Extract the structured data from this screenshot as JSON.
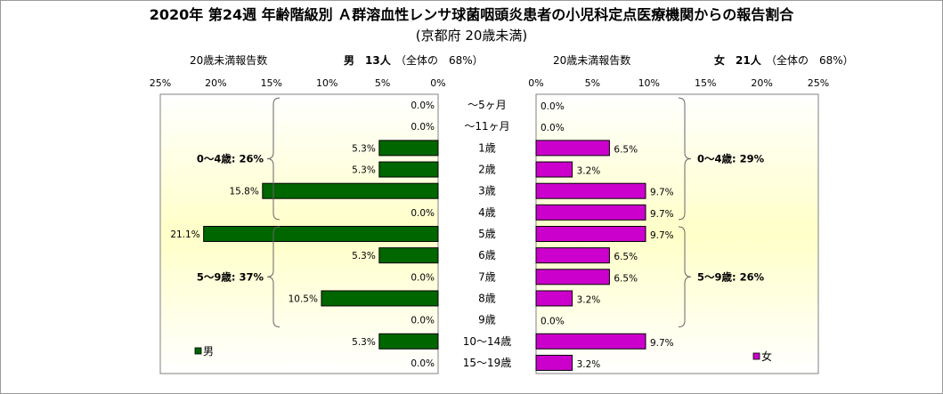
{
  "chart_data": {
    "type": "bar",
    "title": "2020年 第24週 年齢階級別 Ａ群溶血性レンサ球菌咽頭炎患者の小児科定点医療機関からの報告割合",
    "subtitle": "(京都府 20歳未満)",
    "categories": [
      "～5ヶ月",
      "～11ヶ月",
      "1歳",
      "2歳",
      "3歳",
      "4歳",
      "5歳",
      "6歳",
      "7歳",
      "8歳",
      "9歳",
      "10～14歳",
      "15～19歳"
    ],
    "xlim": [
      0,
      25
    ],
    "ticks": [
      "0%",
      "5%",
      "10%",
      "15%",
      "20%",
      "25%"
    ],
    "male": {
      "header_label": "20歳未満報告数",
      "count_label": "男　13人",
      "share_label": "（全体の　68%）",
      "legend": "男",
      "color": "#006600",
      "values": [
        0,
        0,
        5.3,
        5.3,
        15.8,
        0,
        21.1,
        5.3,
        0,
        10.5,
        0,
        5.3,
        0
      ],
      "labels": [
        "0.0%",
        "0.0%",
        "5.3%",
        "5.3%",
        "15.8%",
        "0.0%",
        "21.1%",
        "5.3%",
        "0.0%",
        "10.5%",
        "0.0%",
        "5.3%",
        "0.0%"
      ],
      "groups": [
        {
          "label": "0～4歳: 26%",
          "from": 0,
          "to": 5
        },
        {
          "label": "5～9歳: 37%",
          "from": 6,
          "to": 10
        }
      ]
    },
    "female": {
      "header_label": "20歳未満報告数",
      "count_label": "女　21人",
      "share_label": "（全体の　68%）",
      "legend": "女",
      "color": "#cc00cc",
      "values": [
        0,
        0,
        6.5,
        3.2,
        9.7,
        9.7,
        9.7,
        6.5,
        6.5,
        3.2,
        0,
        9.7,
        3.2
      ],
      "labels": [
        "0.0%",
        "0.0%",
        "6.5%",
        "3.2%",
        "9.7%",
        "9.7%",
        "9.7%",
        "6.5%",
        "6.5%",
        "3.2%",
        "0.0%",
        "9.7%",
        "3.2%"
      ],
      "groups": [
        {
          "label": "0～4歳: 29%",
          "from": 0,
          "to": 5
        },
        {
          "label": "5～9歳: 26%",
          "from": 6,
          "to": 10
        }
      ]
    }
  }
}
